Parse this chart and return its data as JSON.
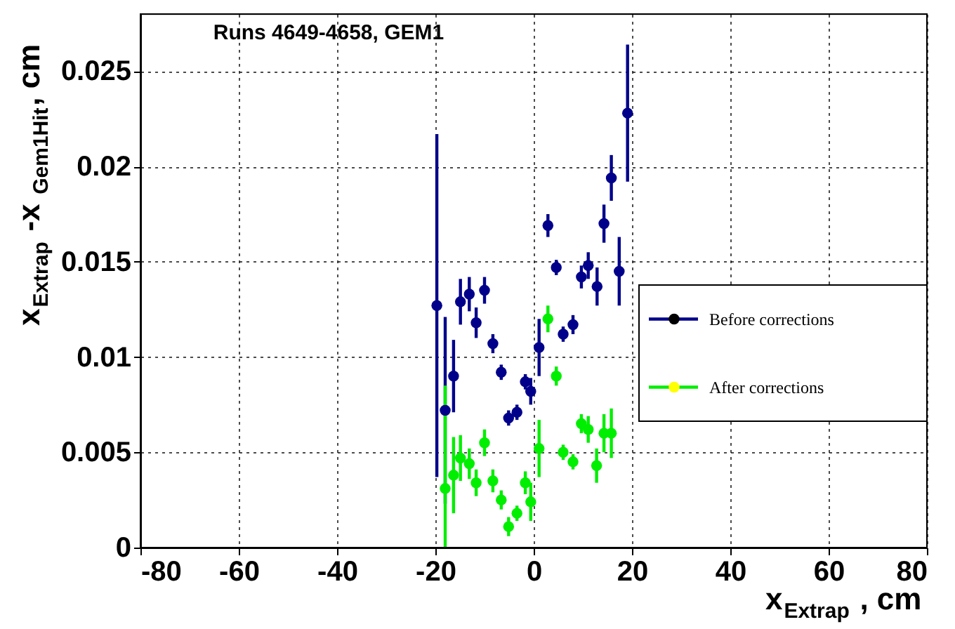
{
  "chart_data": {
    "type": "scatter",
    "title": "Runs 4649-4658, GEM1",
    "xlabel": "x$_{Extrap}$, cm",
    "ylabel": "x$_{Extrap}$-x$_{Gem1Hit}$, cm",
    "xlim": [
      -80,
      80
    ],
    "xticks": [
      -80,
      -60,
      -40,
      -20,
      0,
      20,
      40,
      60,
      80
    ],
    "ylim": [
      0,
      0.028
    ],
    "yticks": [
      0,
      0.005,
      0.01,
      0.015,
      0.02,
      0.025
    ],
    "grid": true,
    "legend": "right",
    "marker": "circle",
    "series": [
      {
        "name": "Before corrections",
        "color": "#00008b",
        "x": [
          -19.7,
          -18,
          -16.3,
          -14.9,
          -13.1,
          -11.7,
          -10,
          -8.3,
          -6.6,
          -5.1,
          -3.4,
          -1.7,
          -0.6,
          1.1,
          2.9,
          4.6,
          6,
          8,
          9.7,
          11.1,
          12.9,
          14.3,
          15.8,
          17.4,
          19.1
        ],
        "values": [
          0.0127,
          0.0072,
          0.009,
          0.0129,
          0.0133,
          0.0118,
          0.0135,
          0.0107,
          0.0092,
          0.0068,
          0.0071,
          0.0087,
          0.0082,
          0.0105,
          0.0169,
          0.0147,
          0.0112,
          0.0117,
          0.0142,
          0.0148,
          0.0137,
          0.017,
          0.0194,
          0.0145,
          0.0228
        ],
        "errors": [
          0.009,
          0.0049,
          0.0019,
          0.0012,
          0.0009,
          0.0008,
          0.0007,
          0.0005,
          0.0004,
          0.0004,
          0.0004,
          0.0004,
          0.0007,
          0.0015,
          0.0006,
          0.0004,
          0.0004,
          0.0005,
          0.0006,
          0.0007,
          0.001,
          0.001,
          0.0012,
          0.0018,
          0.0036
        ]
      },
      {
        "name": "After corrections",
        "color": "#00ee00",
        "x": [
          -18,
          -16.3,
          -14.9,
          -13.1,
          -11.7,
          -10,
          -8.3,
          -6.6,
          -5.1,
          -3.4,
          -1.7,
          -0.6,
          1.1,
          2.9,
          4.6,
          6,
          8,
          9.7,
          11.1,
          12.8,
          14.3,
          15.8
        ],
        "values": [
          0.0031,
          0.0038,
          0.0047,
          0.0044,
          0.0034,
          0.0055,
          0.0035,
          0.0025,
          0.0011,
          0.0018,
          0.0034,
          0.0024,
          0.0052,
          0.012,
          0.009,
          0.005,
          0.0045,
          0.0065,
          0.0062,
          0.0043,
          0.006,
          0.006
        ],
        "errors": [
          [
            0,
            0.0085
          ],
          0.002,
          0.0012,
          0.0008,
          0.0007,
          0.0007,
          0.0006,
          0.0005,
          0.0005,
          0.0004,
          0.0006,
          0.001,
          0.0015,
          0.0007,
          0.0005,
          0.0004,
          0.0004,
          0.0005,
          0.0007,
          0.0009,
          0.001,
          0.0013
        ]
      }
    ]
  }
}
